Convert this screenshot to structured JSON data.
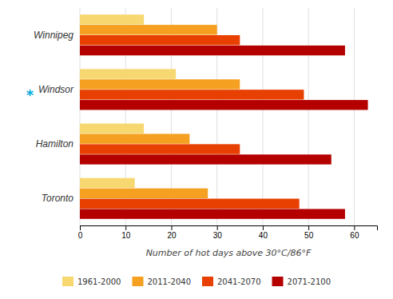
{
  "chart_data": {
    "type": "bar",
    "orientation": "horizontal",
    "categories": [
      "Winnipeg",
      "Windsor",
      "Hamilton",
      "Toronto"
    ],
    "series": [
      {
        "name": "1961-2000",
        "color": "#F7D870",
        "values": [
          14,
          21,
          14,
          12
        ]
      },
      {
        "name": "2011-2040",
        "color": "#F5A020",
        "values": [
          30,
          35,
          24,
          28
        ]
      },
      {
        "name": "2041-2070",
        "color": "#E84000",
        "values": [
          35,
          49,
          35,
          48
        ]
      },
      {
        "name": "2071-2100",
        "color": "#B50000",
        "values": [
          58,
          63,
          55,
          58
        ]
      }
    ],
    "xlabel": "Number of hot days above 30°C/86°F",
    "xlim": [
      0,
      65
    ],
    "xticks": [
      0,
      10,
      20,
      30,
      40,
      50,
      60
    ],
    "grid": true,
    "legend": "bottom",
    "annotations": [
      {
        "text": "*",
        "category": "Windsor",
        "color": "#00AADD"
      }
    ]
  }
}
